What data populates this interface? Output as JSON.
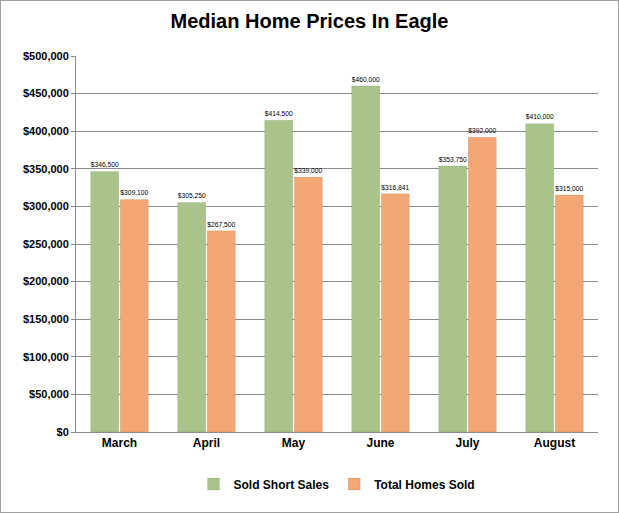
{
  "chart_data": {
    "type": "bar",
    "title": "Median Home Prices In Eagle",
    "categories": [
      "March",
      "April",
      "May",
      "June",
      "July",
      "August"
    ],
    "series": [
      {
        "name": "Sold Short Sales",
        "color": "#a9c38a",
        "values": [
          346500,
          305250,
          414500,
          460000,
          353750,
          410000
        ],
        "value_labels": [
          "$346,500",
          "$305,250",
          "$414,500",
          "$460,000",
          "$353,750",
          "$410,000"
        ]
      },
      {
        "name": "Total Homes Sold",
        "color": "#f2a775",
        "values": [
          309100,
          267500,
          339000,
          316841,
          392000,
          315000
        ],
        "value_labels": [
          "$309,100",
          "$267,500",
          "$339,000",
          "$316,841",
          "$392,000",
          "$315,000"
        ]
      }
    ],
    "ylim": [
      0,
      500000
    ],
    "yticks": [
      {
        "value": 0,
        "label": "$0"
      },
      {
        "value": 50000,
        "label": "$50,000"
      },
      {
        "value": 100000,
        "label": "$100,000"
      },
      {
        "value": 150000,
        "label": "$150,000"
      },
      {
        "value": 200000,
        "label": "$200,000"
      },
      {
        "value": 250000,
        "label": "$250,000"
      },
      {
        "value": 300000,
        "label": "$300,000"
      },
      {
        "value": 350000,
        "label": "$350,000"
      },
      {
        "value": 400000,
        "label": "$400,000"
      },
      {
        "value": 450000,
        "label": "$450,000"
      },
      {
        "value": 500000,
        "label": "$500,000"
      }
    ],
    "grid": true,
    "legend": "bottom",
    "data_labels": true
  }
}
